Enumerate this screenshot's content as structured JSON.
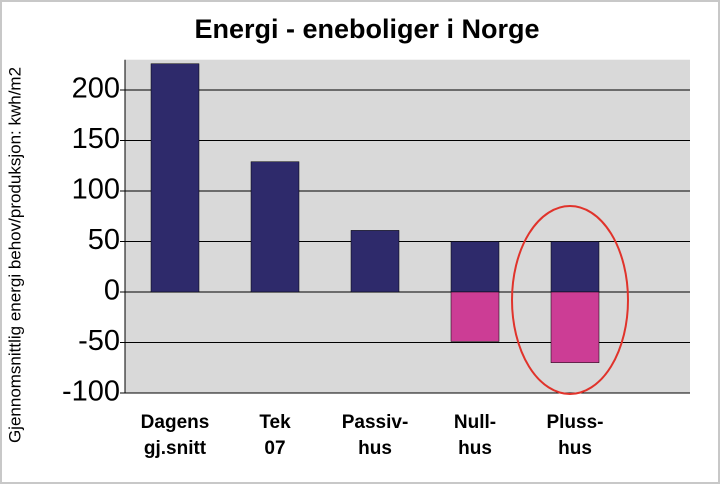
{
  "chart_data": {
    "type": "bar",
    "title": "Energi - eneboliger i Norge",
    "y_label": "Gjennomsnittlig energi behov/produksjon: kwh/m2",
    "categories": [
      [
        "Dagens",
        "gj.snitt"
      ],
      [
        "Tek",
        "07"
      ],
      [
        "Passiv-",
        "hus"
      ],
      [
        "Null-",
        "hus"
      ],
      [
        "Pluss-",
        "hus"
      ]
    ],
    "series": [
      {
        "color": "#2e2a6b",
        "values": [
          226,
          129,
          61,
          50,
          50
        ]
      },
      {
        "color": "#cc3d95",
        "values": [
          null,
          null,
          null,
          -49,
          -70
        ]
      }
    ],
    "ylim": [
      -100,
      230
    ],
    "yticks": [
      -100,
      -50,
      0,
      50,
      100,
      150,
      200
    ],
    "grid": true
  }
}
